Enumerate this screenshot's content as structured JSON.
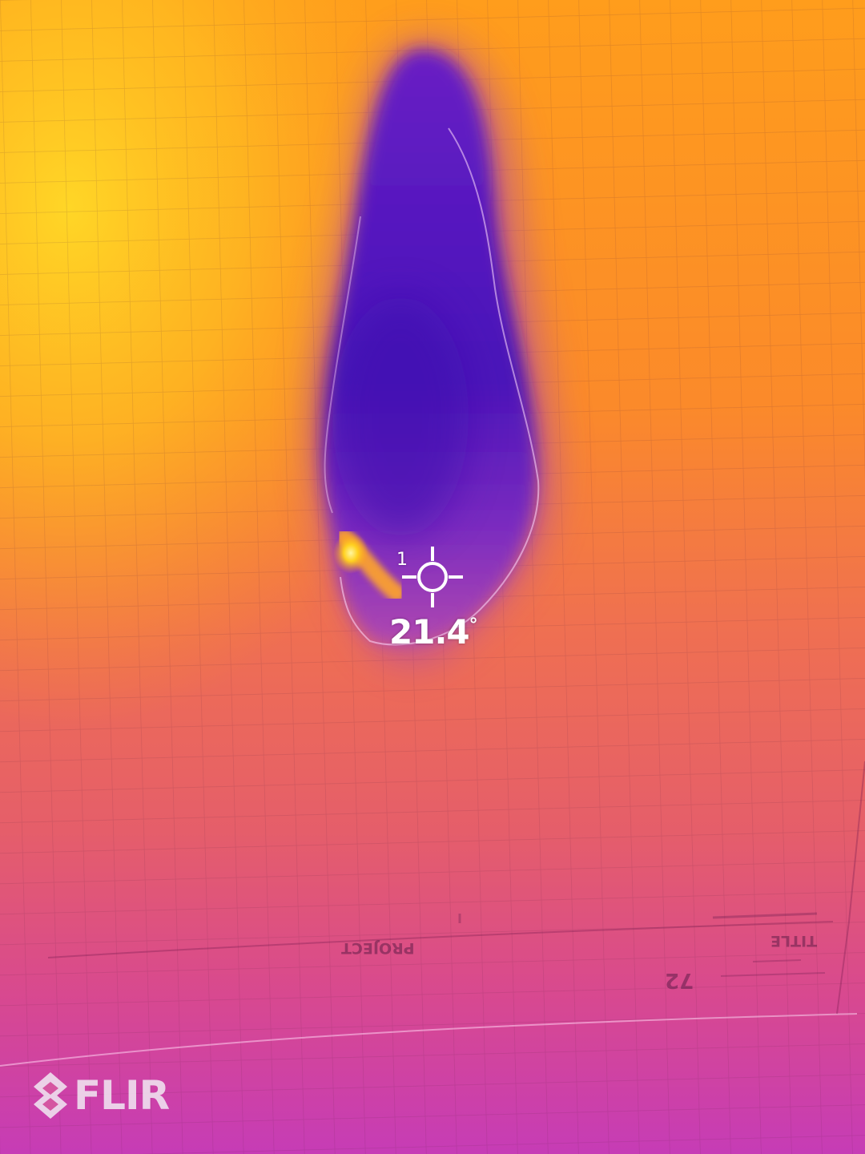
{
  "camera": {
    "brand_logo": "FLIR",
    "logo_icon": "flir-diamond-icon",
    "palette": "iron",
    "colors": {
      "hot_yellow": "#ffd21f",
      "warm_orange": "#ff9a1a",
      "mid_coral": "#ec6a5c",
      "cool_magenta": "#c93fb2",
      "cold_purple": "#4a14b8",
      "overlay_white": "#ffffff"
    }
  },
  "measurement": {
    "spot_label": "1",
    "spot_icon": "crosshair-icon",
    "temperature_value": "21.4",
    "temperature_unit": "°"
  },
  "paper_labels": {
    "project": "PROJECT",
    "title": "TITLE",
    "number": "72"
  }
}
